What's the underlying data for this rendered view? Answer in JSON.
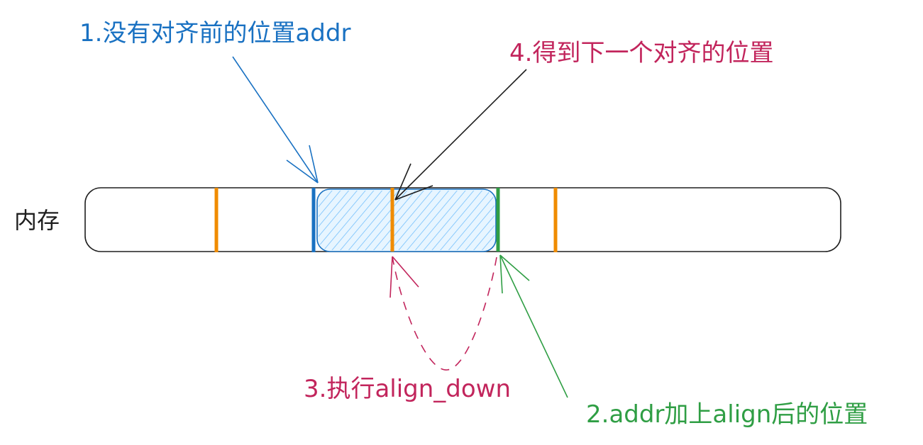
{
  "memory_label": "内存",
  "annotations": {
    "step1": "1.没有对齐前的位置addr",
    "step2": "2.addr加上align后的位置",
    "step3": "3.执行align_down",
    "step4": "4.得到下一个对齐的位置"
  },
  "colors": {
    "step1": "#1971c2",
    "step2": "#2f9e44",
    "step3": "#c2255c",
    "step4": "#c2255c",
    "alignment_marker": "#f08c00",
    "outline": "#1e1e1e",
    "hatch": "#a5d8ff"
  }
}
